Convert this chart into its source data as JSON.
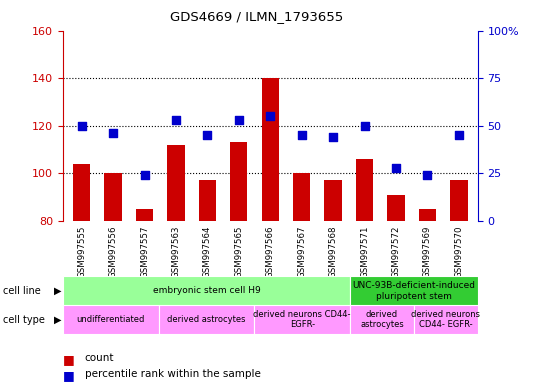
{
  "title": "GDS4669 / ILMN_1793655",
  "samples": [
    "GSM997555",
    "GSM997556",
    "GSM997557",
    "GSM997563",
    "GSM997564",
    "GSM997565",
    "GSM997566",
    "GSM997567",
    "GSM997568",
    "GSM997571",
    "GSM997572",
    "GSM997569",
    "GSM997570"
  ],
  "counts": [
    104,
    100,
    85,
    112,
    97,
    113,
    140,
    100,
    97,
    106,
    91,
    85,
    97
  ],
  "percentiles": [
    50,
    46,
    24,
    53,
    45,
    53,
    55,
    45,
    44,
    50,
    28,
    24,
    45
  ],
  "ylim_left": [
    80,
    160
  ],
  "ylim_right": [
    0,
    100
  ],
  "yticks_left": [
    80,
    100,
    120,
    140,
    160
  ],
  "yticks_right": [
    0,
    25,
    50,
    75,
    100
  ],
  "ytick_labels_right": [
    "0",
    "25",
    "50",
    "75",
    "100%"
  ],
  "bar_color": "#cc0000",
  "dot_color": "#0000cc",
  "bar_width": 0.55,
  "cell_line_groups": [
    {
      "label": "embryonic stem cell H9",
      "start": 0,
      "end": 9,
      "color": "#99ff99"
    },
    {
      "label": "UNC-93B-deficient-induced\npluripotent stem",
      "start": 9,
      "end": 13,
      "color": "#33cc33"
    }
  ],
  "cell_type_groups": [
    {
      "label": "undifferentiated",
      "start": 0,
      "end": 3,
      "color": "#ff99ff"
    },
    {
      "label": "derived astrocytes",
      "start": 3,
      "end": 6,
      "color": "#ff99ff"
    },
    {
      "label": "derived neurons CD44-\nEGFR-",
      "start": 6,
      "end": 9,
      "color": "#ff99ff"
    },
    {
      "label": "derived\nastrocytes",
      "start": 9,
      "end": 11,
      "color": "#ff99ff"
    },
    {
      "label": "derived neurons\nCD44- EGFR-",
      "start": 11,
      "end": 13,
      "color": "#ff99ff"
    }
  ],
  "axis_color_left": "#cc0000",
  "axis_color_right": "#0000cc",
  "background_color": "#ffffff",
  "xlabel_area_color": "#cccccc",
  "dotted_yticks": [
    100,
    120,
    140
  ]
}
